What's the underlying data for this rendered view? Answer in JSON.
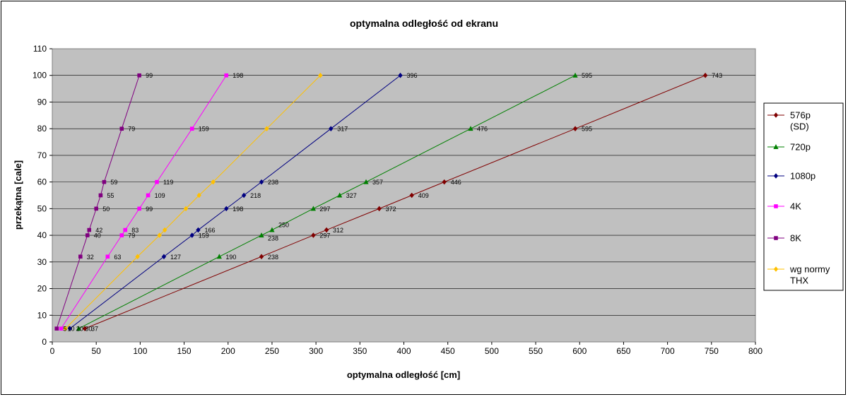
{
  "chart_data": {
    "type": "line",
    "title": "optymalna odległość od ekranu",
    "xlabel": "optymalna odległość [cm]",
    "ylabel": "przekątna [cale]",
    "xlim": [
      0,
      800
    ],
    "ylim": [
      0,
      110
    ],
    "xticks": [
      0,
      50,
      100,
      150,
      200,
      250,
      300,
      350,
      400,
      450,
      500,
      550,
      600,
      650,
      700,
      750,
      800
    ],
    "yticks": [
      0,
      10,
      20,
      30,
      40,
      50,
      60,
      70,
      80,
      90,
      100,
      110
    ],
    "grid": "horizontal",
    "legend": "right",
    "plot_background": "#c0c0c0",
    "series": [
      {
        "name": "576p (SD)",
        "color": "#800000",
        "marker": "diamond",
        "points": [
          [
            37,
            5
          ],
          [
            238,
            32
          ],
          [
            297,
            40
          ],
          [
            312,
            42
          ],
          [
            372,
            50
          ],
          [
            409,
            55
          ],
          [
            446,
            60
          ],
          [
            595,
            80
          ],
          [
            743,
            100
          ]
        ],
        "labels": [
          "37",
          "238",
          "297",
          "312",
          "372",
          "409",
          "446",
          "595",
          "743"
        ],
        "label_y": [
          5,
          32,
          40,
          42,
          50,
          55,
          60,
          80,
          100
        ]
      },
      {
        "name": "720p",
        "color": "#008000",
        "marker": "triangle",
        "points": [
          [
            30,
            5
          ],
          [
            190,
            32
          ],
          [
            238,
            40
          ],
          [
            250,
            42
          ],
          [
            297,
            50
          ],
          [
            327,
            55
          ],
          [
            357,
            60
          ],
          [
            476,
            80
          ],
          [
            595,
            100
          ]
        ],
        "labels": [
          "30",
          "190",
          "238",
          "250",
          "297",
          "327",
          "357",
          "476",
          "595"
        ],
        "label_y": [
          5,
          32,
          39,
          44,
          50,
          55,
          60,
          80,
          100
        ]
      },
      {
        "name": "1080p",
        "color": "#000080",
        "marker": "diamond",
        "points": [
          [
            20,
            5
          ],
          [
            127,
            32
          ],
          [
            159,
            40
          ],
          [
            166,
            42
          ],
          [
            198,
            50
          ],
          [
            218,
            55
          ],
          [
            238,
            60
          ],
          [
            317,
            80
          ],
          [
            396,
            100
          ]
        ],
        "labels": [
          "20",
          "127",
          "159",
          "166",
          "198",
          "218",
          "238",
          "317",
          "396"
        ],
        "label_y": [
          5,
          32,
          40,
          42,
          50,
          55,
          60,
          80,
          100
        ]
      },
      {
        "name": "4K",
        "color": "#ff00ff",
        "marker": "square",
        "points": [
          [
            10,
            5
          ],
          [
            63,
            32
          ],
          [
            79,
            40
          ],
          [
            83,
            42
          ],
          [
            99,
            50
          ],
          [
            109,
            55
          ],
          [
            119,
            60
          ],
          [
            159,
            80
          ],
          [
            198,
            100
          ]
        ],
        "labels": [
          "10",
          "63",
          "79",
          "83",
          "99",
          "109",
          "119",
          "159",
          "198"
        ],
        "label_y": [
          5,
          32,
          40,
          42,
          50,
          55,
          60,
          80,
          100
        ]
      },
      {
        "name": "8K",
        "color": "#800080",
        "marker": "square",
        "points": [
          [
            5,
            5
          ],
          [
            32,
            32
          ],
          [
            40,
            40
          ],
          [
            42,
            42
          ],
          [
            50,
            50
          ],
          [
            55,
            55
          ],
          [
            59,
            60
          ],
          [
            79,
            80
          ],
          [
            99,
            100
          ]
        ],
        "labels": [
          "5",
          "32",
          "40",
          "42",
          "50",
          "55",
          "59",
          "79",
          "99"
        ],
        "label_y": [
          5,
          32,
          40,
          42,
          50,
          55,
          60,
          80,
          100
        ]
      },
      {
        "name": "wg normy THX",
        "color": "#ffc000",
        "marker": "diamond",
        "points": [
          [
            15,
            5
          ],
          [
            97,
            32
          ],
          [
            122,
            40
          ],
          [
            128,
            42
          ],
          [
            152,
            50
          ],
          [
            167,
            55
          ],
          [
            183,
            60
          ],
          [
            244,
            80
          ],
          [
            305,
            100
          ]
        ],
        "labels": [],
        "label_y": []
      }
    ]
  }
}
